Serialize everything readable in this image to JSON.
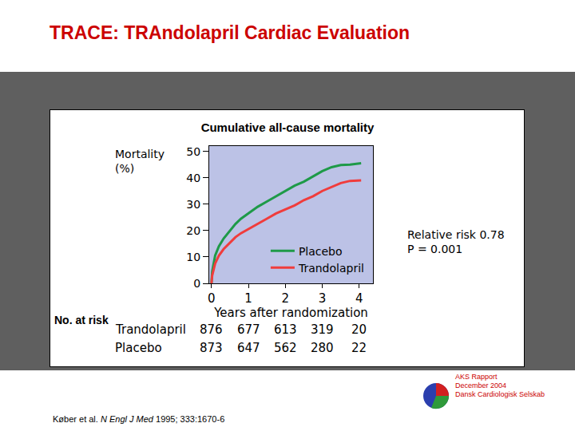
{
  "slide": {
    "title": "TRACE: TRAndolapril Cardiac Evaluation",
    "citation": {
      "authors": "Køber et al.",
      "journal": "N Engl J Med",
      "ref": "1995; 333:1670-6"
    },
    "source": [
      "AKS Rapport",
      "December 2004",
      "Dansk Cardiologisk Selskab"
    ]
  },
  "chart_data": {
    "type": "line",
    "title": "Cumulative all-cause mortality",
    "y_label": "Mortality (%)",
    "x_label": "Years after randomization",
    "xlim": [
      -0.06,
      4.37
    ],
    "xticks": [
      0,
      1,
      2,
      3,
      4
    ],
    "ylim": [
      0,
      52
    ],
    "yticks": [
      0,
      10,
      20,
      30,
      40,
      50
    ],
    "grid": false,
    "legend": "lower right",
    "series": [
      {
        "name": "Placebo",
        "color": "#1e9a48",
        "x": [
          0,
          0.02,
          0.1,
          0.2,
          0.33,
          0.5,
          0.65,
          0.8,
          1.0,
          1.25,
          1.5,
          1.75,
          2.0,
          2.25,
          2.5,
          2.75,
          3.0,
          3.25,
          3.5,
          3.75,
          4.0,
          4.05
        ],
        "values": [
          0,
          4.5,
          10.5,
          14,
          17,
          20,
          22.5,
          24.5,
          26.5,
          29,
          31,
          33,
          35,
          37,
          38.5,
          40.5,
          42.5,
          44,
          44.8,
          45,
          45.5,
          45.5
        ]
      },
      {
        "name": "Trandolapril",
        "color": "#f03c3c",
        "x": [
          0,
          0.02,
          0.1,
          0.2,
          0.33,
          0.5,
          0.65,
          0.8,
          1.0,
          1.25,
          1.5,
          1.75,
          2.0,
          2.25,
          2.5,
          2.75,
          3.0,
          3.25,
          3.5,
          3.75,
          4.0,
          4.05
        ],
        "values": [
          0,
          3,
          7.5,
          10.5,
          13,
          15.5,
          17.5,
          19,
          20.5,
          22.5,
          24.5,
          26.5,
          28,
          29.5,
          31.5,
          33,
          35,
          36.5,
          38,
          38.8,
          39,
          39
        ]
      }
    ],
    "annotations": [
      "Relative risk 0.78",
      "P = 0.001"
    ],
    "risk_table": {
      "title": "No. at risk",
      "times": [
        0,
        1,
        2,
        3,
        4
      ],
      "rows": [
        {
          "name": "Trandolapril",
          "values": [
            876,
            677,
            613,
            319,
            20
          ]
        },
        {
          "name": "Placebo",
          "values": [
            873,
            647,
            562,
            280,
            22
          ]
        }
      ]
    }
  }
}
